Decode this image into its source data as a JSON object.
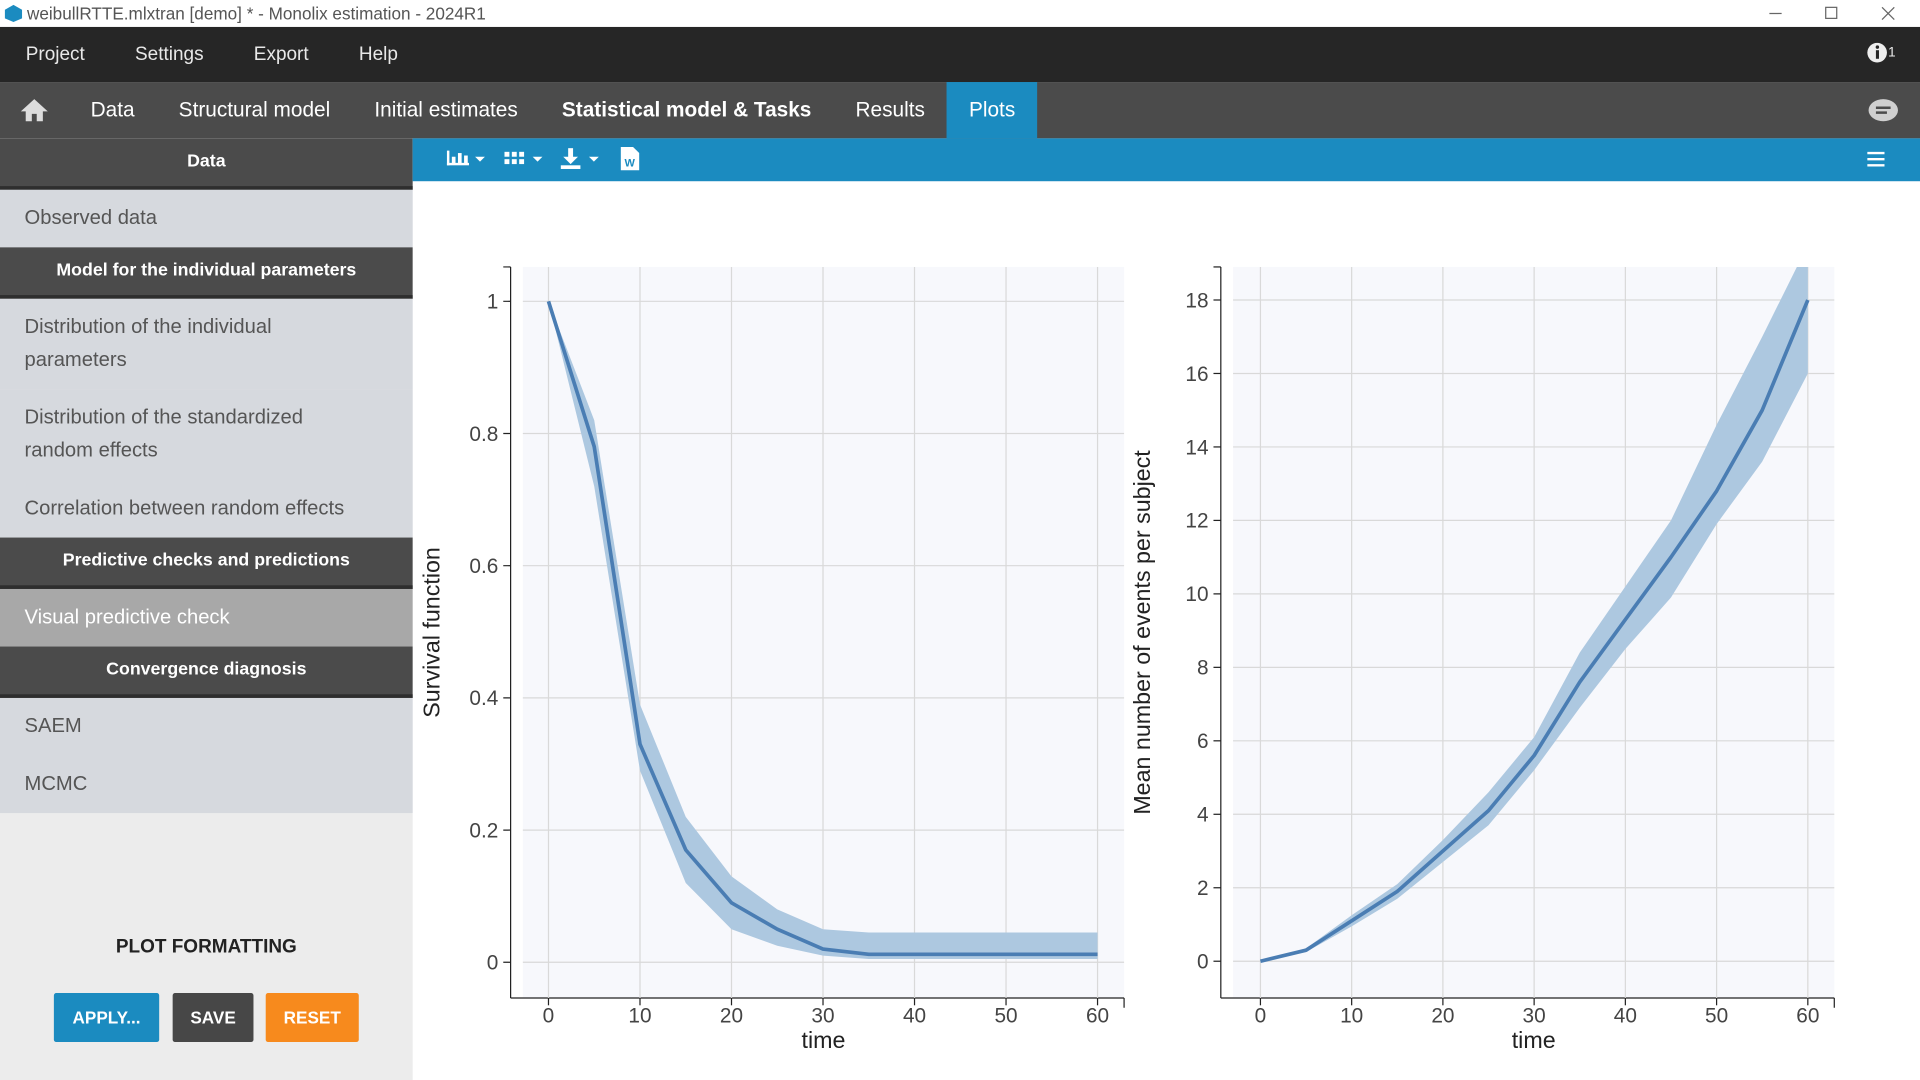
{
  "window": {
    "title": "weibullRTTE.mlxtran [demo] * - Monolix estimation - 2024R1",
    "notifications": "1"
  },
  "menu": [
    "Project",
    "Settings",
    "Export",
    "Help"
  ],
  "tabs": [
    "Data",
    "Structural model",
    "Initial estimates",
    "Statistical model & Tasks",
    "Results",
    "Plots"
  ],
  "sidebar": [
    {
      "title": "Data",
      "items": [
        "Observed data"
      ]
    },
    {
      "title": "Model for the individual parameters",
      "items": [
        "Distribution of the individual parameters",
        "Distribution of the standardized random effects",
        "Correlation between random effects"
      ]
    },
    {
      "title": "Predictive checks and predictions",
      "items": [
        "Visual predictive check"
      ]
    },
    {
      "title": "Convergence diagnosis",
      "items": [
        "SAEM",
        "MCMC"
      ]
    }
  ],
  "plot_formatting": {
    "title": "PLOT FORMATTING",
    "buttons": [
      "APPLY...",
      "SAVE",
      "RESET"
    ]
  },
  "chart_data": [
    {
      "type": "line",
      "xlabel": "time",
      "ylabel": "Survival function",
      "x": [
        0,
        5,
        10,
        15,
        20,
        25,
        30,
        35,
        40,
        45,
        50,
        55,
        60
      ],
      "band_color": "#adc8e0",
      "series": [
        {
          "color": "#4a7db3",
          "values": [
            1,
            0.78,
            0.33,
            0.17,
            0.09,
            0.05,
            0.02,
            0.012,
            0.012,
            0.012,
            0.012,
            0.012,
            0.012
          ],
          "lower": [
            1,
            0.72,
            0.29,
            0.12,
            0.05,
            0.025,
            0.01,
            0.005,
            0.005,
            0.005,
            0.005,
            0.005,
            0.005
          ],
          "upper": [
            1,
            0.82,
            0.39,
            0.22,
            0.13,
            0.08,
            0.05,
            0.045,
            0.045,
            0.045,
            0.045,
            0.045,
            0.045
          ]
        }
      ],
      "xlim": [
        -2.8,
        62.9
      ],
      "xticks": [
        0,
        10,
        20,
        30,
        40,
        50,
        60
      ],
      "ylim": [
        -0.054,
        1.052
      ],
      "yticks": [
        0,
        0.2,
        0.4,
        0.6,
        0.8,
        1
      ],
      "grid": true
    },
    {
      "type": "line",
      "xlabel": "time",
      "ylabel": "Mean number of events per subject",
      "x": [
        0,
        5,
        10,
        15,
        20,
        25,
        30,
        35,
        40,
        45,
        50,
        55,
        60
      ],
      "band_color": "#adc8e0",
      "series": [
        {
          "color": "#4a7db3",
          "values": [
            0,
            0.3,
            1.1,
            1.9,
            3.0,
            4.1,
            5.6,
            7.6,
            9.3,
            11.0,
            12.8,
            15.0,
            18.0
          ],
          "lower": [
            0,
            0.25,
            0.95,
            1.7,
            2.7,
            3.7,
            5.2,
            6.9,
            8.5,
            9.9,
            11.9,
            13.6,
            16.0
          ],
          "upper": [
            0,
            0.35,
            1.25,
            2.1,
            3.3,
            4.6,
            6.1,
            8.4,
            10.2,
            12.0,
            14.6,
            17.0,
            19.5
          ]
        }
      ],
      "xlim": [
        -3,
        62.9
      ],
      "xticks": [
        0,
        10,
        20,
        30,
        40,
        50,
        60
      ],
      "ylim": [
        -1,
        18.9
      ],
      "yticks": [
        0,
        2,
        4,
        6,
        8,
        10,
        12,
        14,
        16,
        18
      ],
      "grid": true
    }
  ]
}
